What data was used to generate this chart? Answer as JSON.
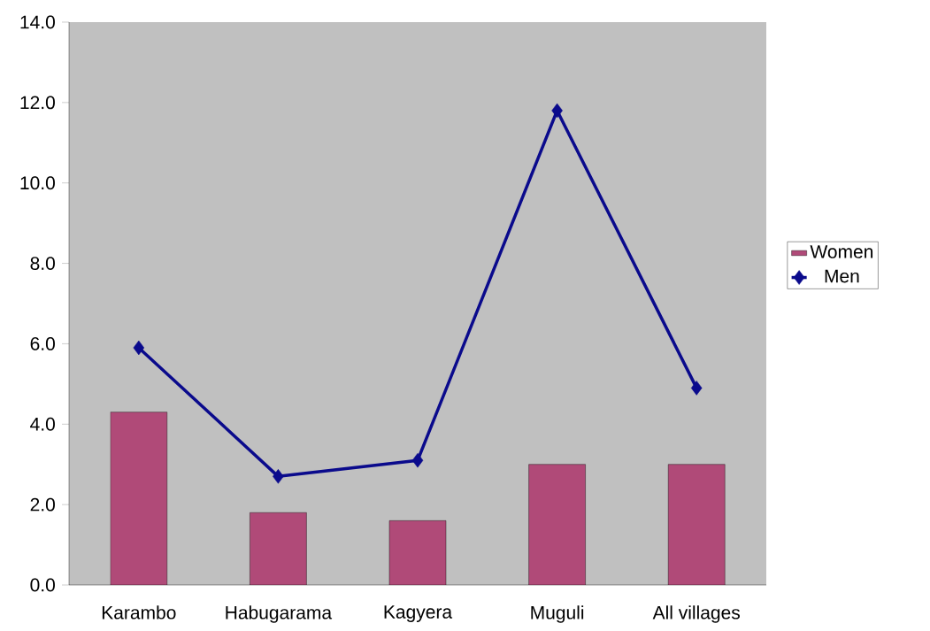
{
  "chart_data": {
    "type": "bar",
    "categories": [
      "Karambo",
      "Habugarama",
      "Kagyera",
      "Muguli",
      "All villages"
    ],
    "series": [
      {
        "name": "Women",
        "color": "#b04a78",
        "values": [
          4.3,
          1.8,
          1.6,
          3.0,
          3.0
        ]
      },
      {
        "name": "Men",
        "type": "line",
        "color": "#0a0a8c",
        "marker": "diamond",
        "line_style": "solid",
        "values": [
          5.9,
          2.7,
          3.1,
          11.8,
          4.9
        ]
      }
    ],
    "ylim": [
      0,
      14
    ],
    "yticks": [
      {
        "value": 0,
        "label": "0.0"
      },
      {
        "value": 2,
        "label": "2.0"
      },
      {
        "value": 4,
        "label": "4.0"
      },
      {
        "value": 6,
        "label": "6.0"
      },
      {
        "value": 8,
        "label": "8.0"
      },
      {
        "value": 10,
        "label": "10.0"
      },
      {
        "value": 12,
        "label": "12.0"
      },
      {
        "value": 14,
        "label": "14.0"
      }
    ],
    "grid": false,
    "legend": "right"
  }
}
